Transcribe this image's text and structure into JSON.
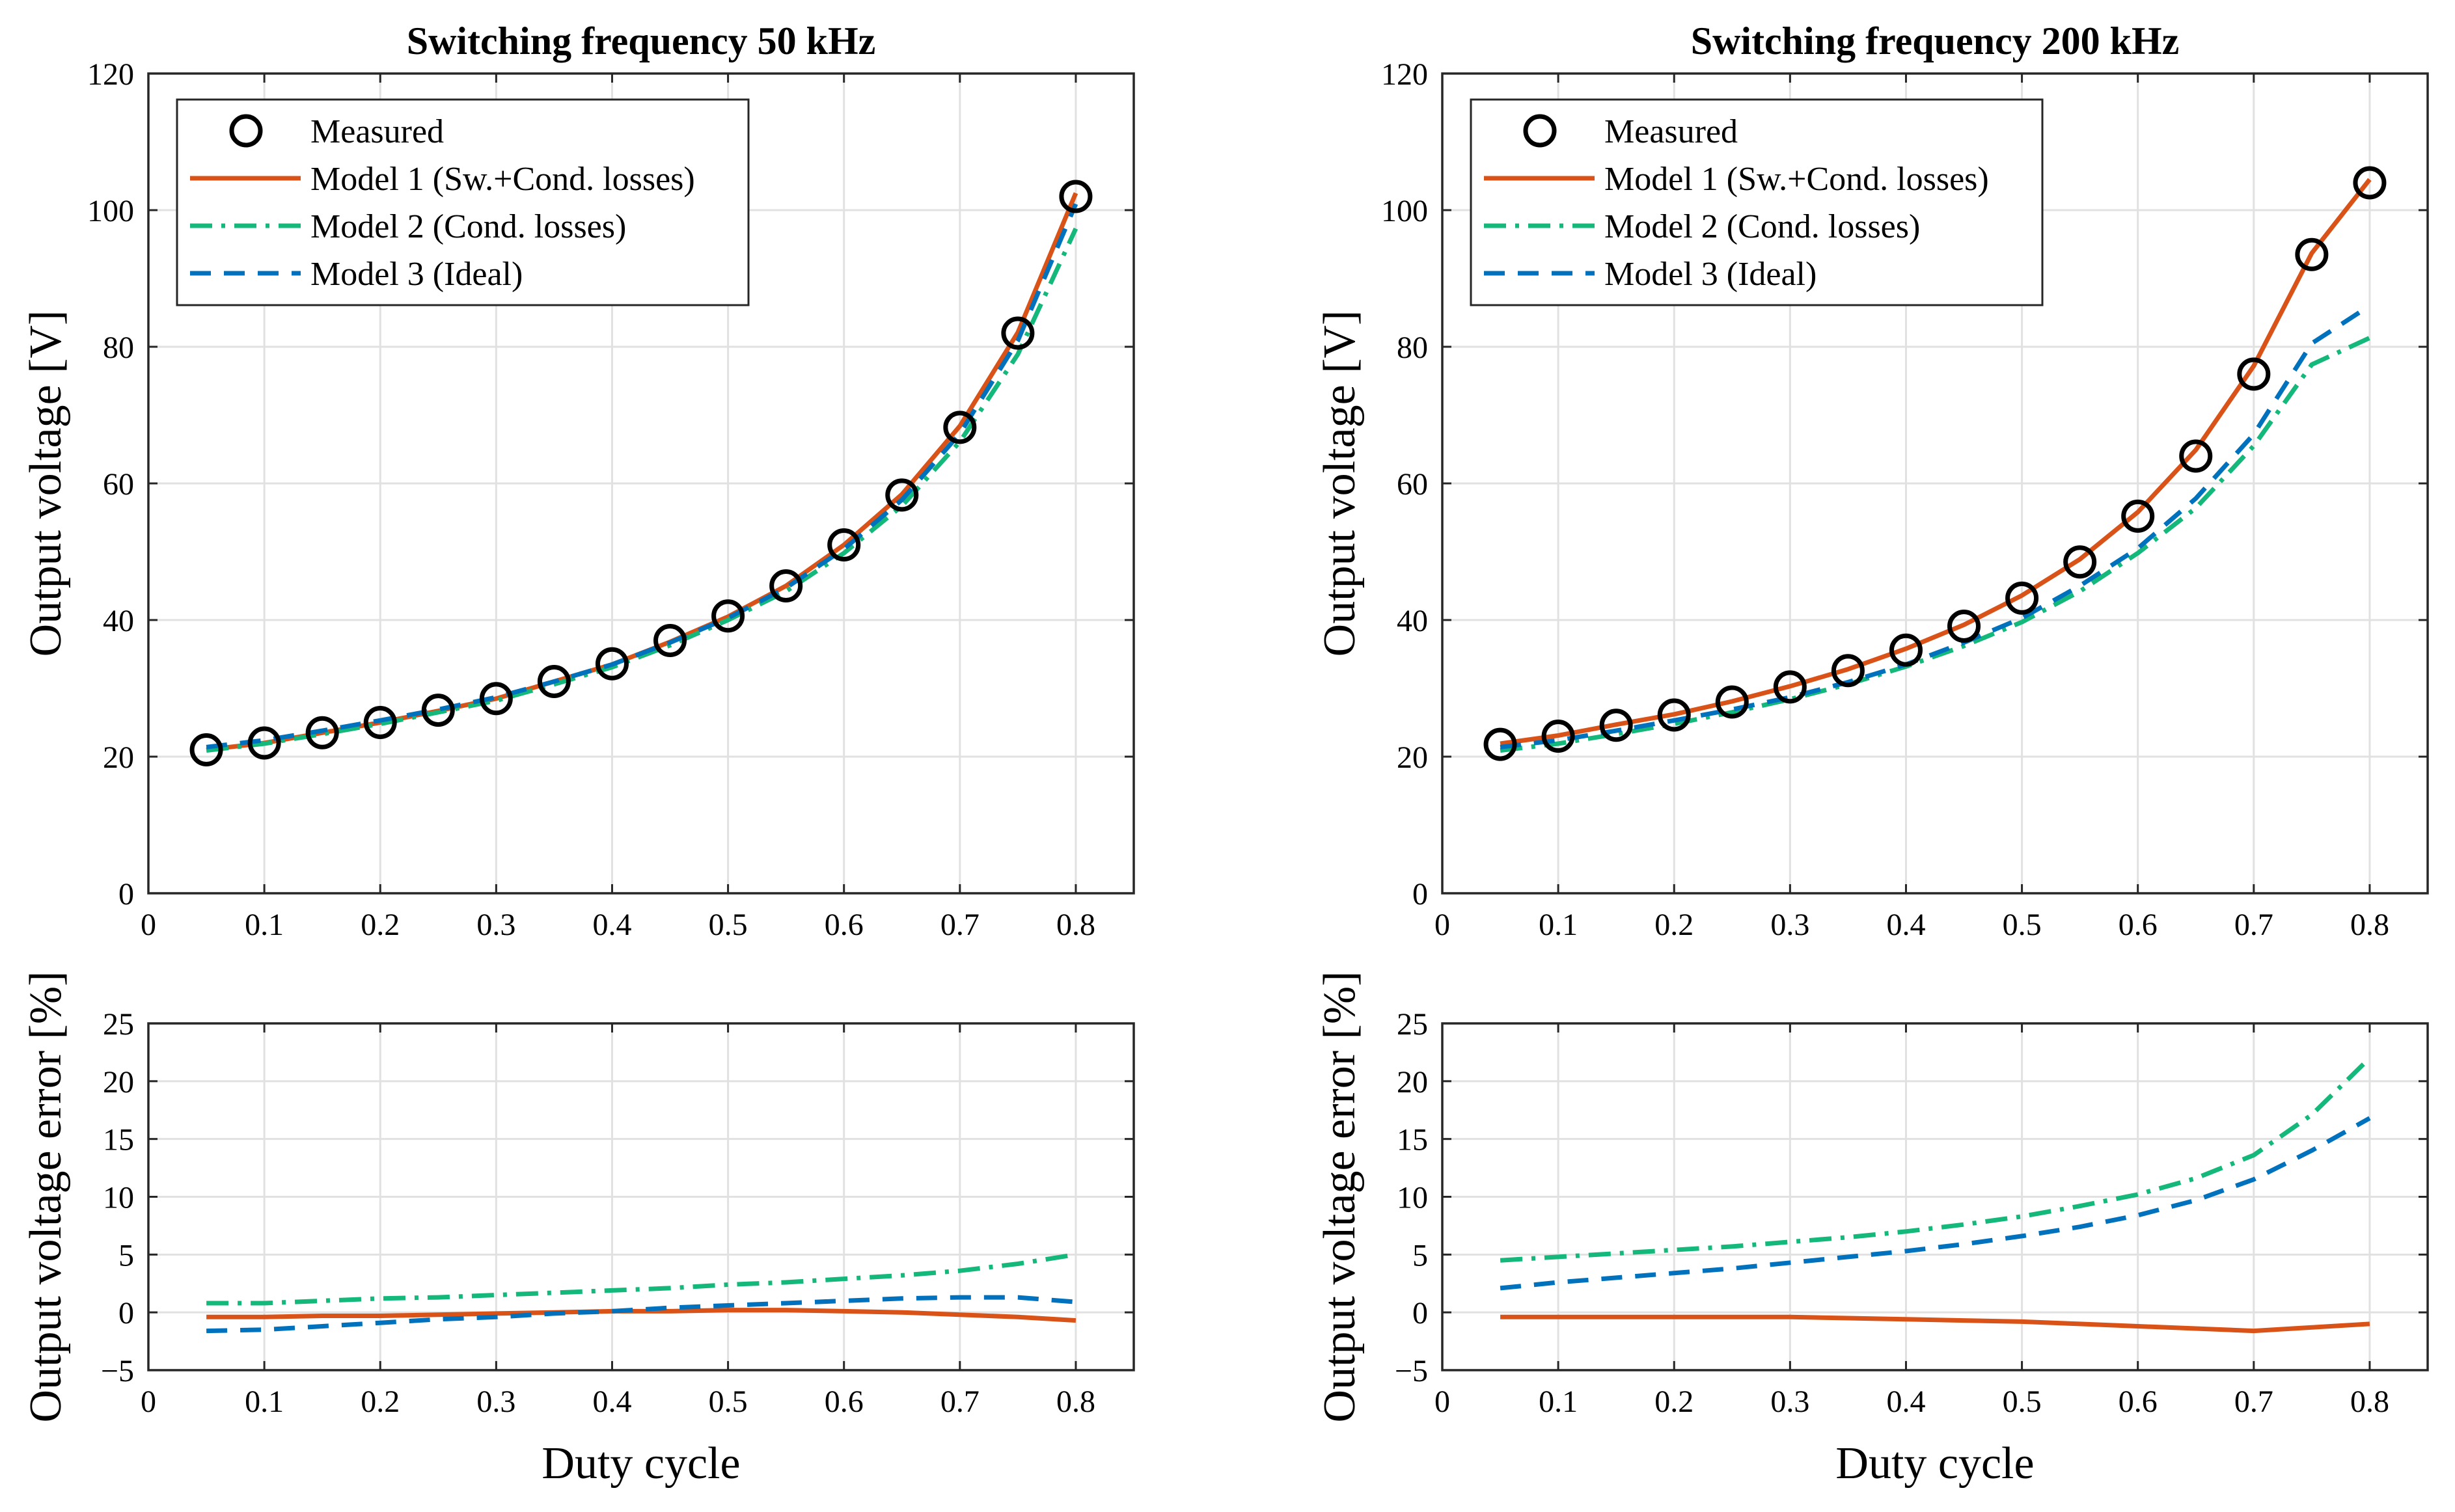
{
  "chart_data": [
    {
      "type": "line",
      "panel": "top-left",
      "title": "Switching frequency 50 kHz",
      "xlabel": "",
      "ylabel": "Output voltage [V]",
      "xlim": [
        0,
        0.85
      ],
      "ylim": [
        0,
        120
      ],
      "xticks": [
        0,
        0.1,
        0.2,
        0.3,
        0.4,
        0.5,
        0.6,
        0.7,
        0.8
      ],
      "yticks": [
        0,
        20,
        40,
        60,
        80,
        100,
        120
      ],
      "xtick_labels": [
        "0",
        "0.1",
        "0.2",
        "0.3",
        "0.4",
        "0.5",
        "0.6",
        "0.7",
        "0.8"
      ],
      "ytick_labels": [
        "0",
        "20",
        "40",
        "60",
        "80",
        "100",
        "120"
      ],
      "grid": true,
      "legend_position": "top-left",
      "x": [
        0.05,
        0.1,
        0.15,
        0.2,
        0.25,
        0.3,
        0.35,
        0.4,
        0.45,
        0.5,
        0.55,
        0.6,
        0.65,
        0.7,
        0.75,
        0.8
      ],
      "series": [
        {
          "name": "Measured",
          "style": "marker",
          "color": "#000000",
          "values": [
            21,
            22,
            23.5,
            25,
            26.8,
            28.5,
            31,
            33.6,
            37,
            40.6,
            45,
            51,
            58.3,
            68.2,
            82,
            102
          ]
        },
        {
          "name": "Model 1 (Sw.+Cond. losses)",
          "style": "solid",
          "color": "#d95319",
          "values": [
            21,
            22,
            23.5,
            25,
            26.7,
            28.5,
            31,
            33.5,
            36.8,
            40.5,
            45,
            51,
            58.4,
            68.4,
            82.1,
            102.5
          ]
        },
        {
          "name": "Model 2 (Cond. losses)",
          "style": "dashdot",
          "color": "#13b87a",
          "values": [
            20.9,
            21.9,
            23.3,
            24.8,
            26.5,
            28.2,
            30.6,
            33.1,
            36.3,
            40.0,
            44.2,
            49.8,
            56.7,
            66.1,
            78.9,
            97.3
          ]
        },
        {
          "name": "Model 3 (Ideal)",
          "style": "dashed",
          "color": "#0072bd",
          "values": [
            21.4,
            22.4,
            23.8,
            25.3,
            26.9,
            28.7,
            31.0,
            33.5,
            36.7,
            40.3,
            44.7,
            50.4,
            57.6,
            67.3,
            80.9,
            100.9
          ]
        }
      ]
    },
    {
      "type": "line",
      "panel": "top-right",
      "title": "Switching frequency 200 kHz",
      "xlabel": "",
      "ylabel": "Output voltage [V]",
      "xlim": [
        0,
        0.85
      ],
      "ylim": [
        0,
        120
      ],
      "xticks": [
        0,
        0.1,
        0.2,
        0.3,
        0.4,
        0.5,
        0.6,
        0.7,
        0.8
      ],
      "yticks": [
        0,
        20,
        40,
        60,
        80,
        100,
        120
      ],
      "xtick_labels": [
        "0",
        "0.1",
        "0.2",
        "0.3",
        "0.4",
        "0.5",
        "0.6",
        "0.7",
        "0.8"
      ],
      "ytick_labels": [
        "0",
        "20",
        "40",
        "60",
        "80",
        "100",
        "120"
      ],
      "grid": true,
      "legend_position": "top-left",
      "x": [
        0.05,
        0.1,
        0.15,
        0.2,
        0.25,
        0.3,
        0.35,
        0.4,
        0.45,
        0.5,
        0.55,
        0.6,
        0.65,
        0.7,
        0.75,
        0.8
      ],
      "series": [
        {
          "name": "Measured",
          "style": "marker",
          "color": "#000000",
          "values": [
            21.8,
            23,
            24.6,
            26.1,
            28,
            30.2,
            32.6,
            35.6,
            39.1,
            43.2,
            48.5,
            55.2,
            64,
            76,
            93.5,
            104
          ]
        },
        {
          "name": "Model 1 (Sw.+Cond. losses)",
          "style": "solid",
          "color": "#d95319",
          "values": [
            21.9,
            23.1,
            24.7,
            26.2,
            28.1,
            30.3,
            32.8,
            35.8,
            39.3,
            43.6,
            48.9,
            55.8,
            64.9,
            77.2,
            93.7,
            104.5
          ]
        },
        {
          "name": "Model 2 (Cond. losses)",
          "style": "dashdot",
          "color": "#13b87a",
          "values": [
            20.9,
            21.9,
            23.3,
            24.8,
            26.5,
            28.4,
            30.6,
            33.2,
            36.2,
            39.7,
            44.2,
            49.8,
            56.4,
            65.5,
            77.4,
            81.3
          ]
        },
        {
          "name": "Model 3 (Ideal)",
          "style": "dashed",
          "color": "#0072bd",
          "values": [
            21.4,
            22.4,
            23.8,
            25.3,
            26.9,
            28.7,
            30.9,
            33.5,
            36.7,
            40.3,
            45.0,
            50.5,
            57.8,
            67.2,
            80.5,
            86.0
          ]
        }
      ]
    },
    {
      "type": "line",
      "panel": "bottom-left",
      "title": "",
      "xlabel": "Duty cycle",
      "ylabel": "Output voltage error [%]",
      "xlim": [
        0,
        0.85
      ],
      "ylim": [
        -5,
        25
      ],
      "xticks": [
        0,
        0.1,
        0.2,
        0.3,
        0.4,
        0.5,
        0.6,
        0.7,
        0.8
      ],
      "yticks": [
        -5,
        0,
        5,
        10,
        15,
        20,
        25
      ],
      "xtick_labels": [
        "0",
        "0.1",
        "0.2",
        "0.3",
        "0.4",
        "0.5",
        "0.6",
        "0.7",
        "0.8"
      ],
      "ytick_labels": [
        "−5",
        "0",
        "5",
        "10",
        "15",
        "20",
        "25"
      ],
      "grid": true,
      "x": [
        0.05,
        0.1,
        0.15,
        0.2,
        0.25,
        0.3,
        0.35,
        0.4,
        0.45,
        0.5,
        0.55,
        0.6,
        0.65,
        0.7,
        0.75,
        0.8
      ],
      "series": [
        {
          "name": "Model 1 (Sw.+Cond. losses)",
          "style": "solid",
          "color": "#d95319",
          "values": [
            -0.4,
            -0.4,
            -0.3,
            -0.3,
            -0.2,
            -0.1,
            0,
            0.1,
            0.1,
            0.2,
            0.2,
            0.1,
            0,
            -0.2,
            -0.4,
            -0.7
          ]
        },
        {
          "name": "Model 2 (Cond. losses)",
          "style": "dashdot",
          "color": "#13b87a",
          "values": [
            0.8,
            0.8,
            1.0,
            1.2,
            1.3,
            1.5,
            1.7,
            1.9,
            2.1,
            2.4,
            2.6,
            2.9,
            3.2,
            3.6,
            4.2,
            5.0
          ]
        },
        {
          "name": "Model 3 (Ideal)",
          "style": "dashed",
          "color": "#0072bd",
          "values": [
            -1.6,
            -1.5,
            -1.2,
            -0.9,
            -0.6,
            -0.4,
            -0.1,
            0.1,
            0.4,
            0.6,
            0.8,
            1.0,
            1.2,
            1.3,
            1.3,
            0.9
          ]
        }
      ]
    },
    {
      "type": "line",
      "panel": "bottom-right",
      "title": "",
      "xlabel": "Duty cycle",
      "ylabel": "Output voltage error [%]",
      "xlim": [
        0,
        0.85
      ],
      "ylim": [
        -5,
        25
      ],
      "xticks": [
        0,
        0.1,
        0.2,
        0.3,
        0.4,
        0.5,
        0.6,
        0.7,
        0.8
      ],
      "yticks": [
        -5,
        0,
        5,
        10,
        15,
        20,
        25
      ],
      "xtick_labels": [
        "0",
        "0.1",
        "0.2",
        "0.3",
        "0.4",
        "0.5",
        "0.6",
        "0.7",
        "0.8"
      ],
      "ytick_labels": [
        "−5",
        "0",
        "5",
        "10",
        "15",
        "20",
        "25"
      ],
      "grid": true,
      "x": [
        0.05,
        0.1,
        0.15,
        0.2,
        0.25,
        0.3,
        0.35,
        0.4,
        0.45,
        0.5,
        0.55,
        0.6,
        0.65,
        0.7,
        0.75,
        0.8
      ],
      "series": [
        {
          "name": "Model 1 (Sw.+Cond. losses)",
          "style": "solid",
          "color": "#d95319",
          "values": [
            -0.4,
            -0.4,
            -0.4,
            -0.4,
            -0.4,
            -0.4,
            -0.5,
            -0.6,
            -0.7,
            -0.8,
            -1.0,
            -1.2,
            -1.4,
            -1.6,
            -1.3,
            -1.0
          ]
        },
        {
          "name": "Model 2 (Cond. losses)",
          "style": "dashdot",
          "color": "#13b87a",
          "values": [
            4.5,
            4.8,
            5.1,
            5.4,
            5.7,
            6.1,
            6.5,
            7.0,
            7.6,
            8.3,
            9.2,
            10.2,
            11.6,
            13.6,
            17.1,
            22.0
          ]
        },
        {
          "name": "Model 3 (Ideal)",
          "style": "dashed",
          "color": "#0072bd",
          "values": [
            2.1,
            2.6,
            3.0,
            3.4,
            3.8,
            4.3,
            4.8,
            5.3,
            5.9,
            6.6,
            7.4,
            8.4,
            9.7,
            11.5,
            14.0,
            16.8
          ]
        }
      ]
    }
  ]
}
